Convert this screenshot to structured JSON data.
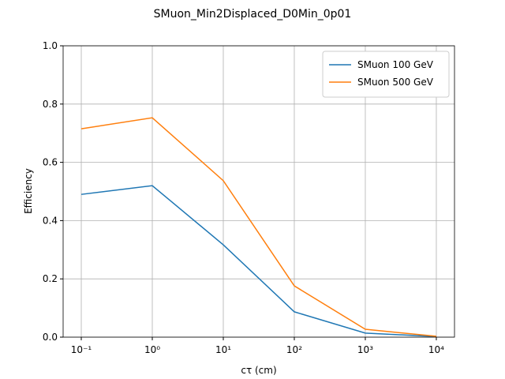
{
  "chart_data": {
    "type": "line",
    "title": "SMuon_Min2Displaced_D0Min_0p01",
    "x_label": "cτ (cm)",
    "y_label": "Efficiency",
    "x": [
      0.1,
      1,
      10,
      100,
      1000,
      10000
    ],
    "series": [
      {
        "name": "SMuon 100 GeV",
        "color": "#1f77b4",
        "values": [
          0.49,
          0.52,
          0.317,
          0.087,
          0.014,
          0.002
        ]
      },
      {
        "name": "SMuon 500 GeV",
        "color": "#ff7f0e",
        "values": [
          0.715,
          0.753,
          0.537,
          0.176,
          0.027,
          0.003
        ]
      }
    ],
    "xscale": "log",
    "xlim": [
      0.0555,
      18030
    ],
    "xticks": [
      {
        "value": 0.1,
        "label": "10⁻¹"
      },
      {
        "value": 1,
        "label": "10⁰"
      },
      {
        "value": 10,
        "label": "10¹"
      },
      {
        "value": 100,
        "label": "10²"
      },
      {
        "value": 1000,
        "label": "10³"
      },
      {
        "value": 10000,
        "label": "10⁴"
      }
    ],
    "ylim": [
      0,
      1
    ],
    "yticks": [
      {
        "value": 0,
        "label": "0.0"
      },
      {
        "value": 0.2,
        "label": "0.2"
      },
      {
        "value": 0.4,
        "label": "0.4"
      },
      {
        "value": 0.6,
        "label": "0.6"
      },
      {
        "value": 0.8,
        "label": "0.8"
      },
      {
        "value": 1,
        "label": "1.0"
      }
    ],
    "grid": true,
    "legend": "upper right"
  }
}
